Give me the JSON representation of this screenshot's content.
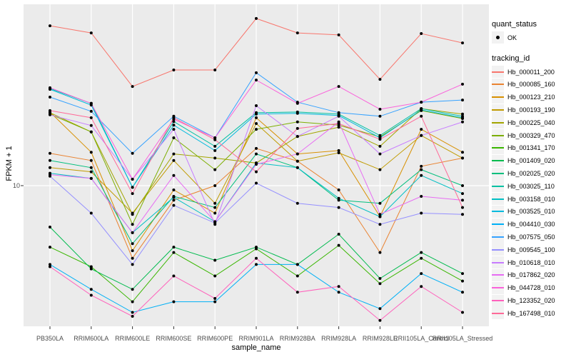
{
  "colors": {
    "panel_bg": "#EBEBEB",
    "grid": "#FFFFFF",
    "point": "#000000",
    "axis_text": "#4D4D4D",
    "tick": "#333333"
  },
  "chart_data": {
    "type": "line",
    "title": "",
    "xlabel": "sample_name",
    "ylabel": "FPKM + 1",
    "y_scale": "log10",
    "ylim": [
      1.8,
      80
    ],
    "grid": "major",
    "legend_position": "right",
    "y_ticks": [
      {
        "label": "10",
        "value": 10
      }
    ],
    "categories": [
      "PB350LA",
      "RRIM600LA",
      "RRIM600LE",
      "RRIM600SE",
      "RRIM600PE",
      "RRIM901LA",
      "RRIM928BA",
      "RRIM928LA",
      "RRIM928LE",
      "RRII105LA_Control",
      "RRII105LA_Stressed"
    ],
    "legend": {
      "quant_status_title": "quant_status",
      "ok_label": "OK",
      "tracking_id_title": "tracking_id"
    },
    "series": [
      {
        "name": "Hb_000011_200",
        "color": "#F8766D",
        "values": [
          67.5,
          62.0,
          32.7,
          39.8,
          39.8,
          73.6,
          62.0,
          60.5,
          35.6,
          61.5,
          55.0
        ]
      },
      {
        "name": "Hb_000085_160",
        "color": "#EA8331",
        "values": [
          14.7,
          13.5,
          4.2,
          8.4,
          10.0,
          15.6,
          13.4,
          9.5,
          4.5,
          12.6,
          13.9
        ]
      },
      {
        "name": "Hb_000123_210",
        "color": "#D89000",
        "values": [
          24.1,
          14.9,
          4.6,
          9.5,
          7.2,
          22.5,
          14.6,
          15.2,
          6.9,
          19.6,
          14.9
        ]
      },
      {
        "name": "Hb_000193_190",
        "color": "#C09B00",
        "values": [
          12.4,
          11.8,
          7.2,
          13.5,
          8.1,
          21.0,
          13.4,
          14.8,
          12.1,
          18.2,
          13.9
        ]
      },
      {
        "name": "Hb_000225_040",
        "color": "#A3A500",
        "values": [
          23.9,
          19.0,
          7.1,
          14.6,
          13.9,
          13.1,
          18.0,
          20.1,
          16.0,
          25.1,
          23.5
        ]
      },
      {
        "name": "Hb_000329_470",
        "color": "#7CAE00",
        "values": [
          23.5,
          19.0,
          6.3,
          17.7,
          12.1,
          19.6,
          21.4,
          20.6,
          17.9,
          24.5,
          22.3
        ]
      },
      {
        "name": "Hb_001341_170",
        "color": "#39B600",
        "values": [
          4.8,
          3.8,
          2.5,
          4.5,
          3.4,
          4.7,
          3.4,
          4.9,
          3.1,
          4.2,
          3.2
        ]
      },
      {
        "name": "Hb_001409_020",
        "color": "#00BB4E",
        "values": [
          6.1,
          3.7,
          2.9,
          4.8,
          4.1,
          4.8,
          3.9,
          5.6,
          3.3,
          4.5,
          3.5
        ]
      },
      {
        "name": "Hb_002025_020",
        "color": "#00BF7D",
        "values": [
          13.5,
          12.4,
          5.0,
          8.8,
          7.7,
          14.6,
          12.4,
          8.4,
          8.1,
          12.1,
          10.0
        ]
      },
      {
        "name": "Hb_003025_110",
        "color": "#00C1A3",
        "values": [
          31.9,
          26.7,
          9.8,
          21.5,
          16.0,
          23.9,
          24.1,
          23.5,
          18.2,
          25.1,
          22.9
        ]
      },
      {
        "name": "Hb_003158_010",
        "color": "#00BFC4",
        "values": [
          11.6,
          10.9,
          5.7,
          8.7,
          6.5,
          13.1,
          12.4,
          8.6,
          6.9,
          11.3,
          9.1
        ]
      },
      {
        "name": "Hb_003525_010",
        "color": "#00BADE",
        "values": [
          31.6,
          26.2,
          9.8,
          20.6,
          15.2,
          23.5,
          23.7,
          23.1,
          17.7,
          24.7,
          22.5
        ]
      },
      {
        "name": "Hb_004410_030",
        "color": "#00B0F6",
        "values": [
          3.9,
          2.9,
          2.2,
          2.5,
          2.5,
          3.9,
          3.9,
          2.8,
          2.3,
          3.5,
          2.8
        ]
      },
      {
        "name": "Hb_007575_050",
        "color": "#35A2FF",
        "values": [
          28.8,
          24.3,
          14.7,
          22.9,
          17.7,
          38.5,
          27.1,
          23.9,
          22.9,
          27.1,
          27.8
        ]
      },
      {
        "name": "Hb_009545_100",
        "color": "#9590FF",
        "values": [
          11.2,
          7.2,
          3.9,
          7.9,
          6.4,
          10.3,
          8.1,
          7.7,
          6.3,
          7.2,
          7.1
        ]
      },
      {
        "name": "Hb_010618_010",
        "color": "#C77CFF",
        "values": [
          23.3,
          20.5,
          10.8,
          19.6,
          6.3,
          26.0,
          18.0,
          22.9,
          14.6,
          18.2,
          21.4
        ]
      },
      {
        "name": "Hb_017862_020",
        "color": "#E76BF3",
        "values": [
          11.4,
          10.9,
          5.7,
          11.3,
          6.5,
          12.9,
          14.6,
          21.4,
          7.1,
          8.8,
          8.4
        ]
      },
      {
        "name": "Hb_044728_010",
        "color": "#FA62DB",
        "values": [
          32.2,
          26.7,
          10.8,
          22.1,
          17.7,
          35.3,
          26.7,
          32.7,
          24.9,
          27.1,
          33.6
        ]
      },
      {
        "name": "Hb_123352_020",
        "color": "#FF62BC",
        "values": [
          3.8,
          2.7,
          2.1,
          3.4,
          2.6,
          4.2,
          2.8,
          3.0,
          2.0,
          3.0,
          2.2
        ]
      },
      {
        "name": "Hb_167498_010",
        "color": "#FF6A98",
        "values": [
          24.5,
          22.5,
          9.1,
          22.5,
          17.3,
          11.8,
          19.8,
          21.0,
          17.4,
          22.9,
          7.7
        ]
      }
    ]
  }
}
